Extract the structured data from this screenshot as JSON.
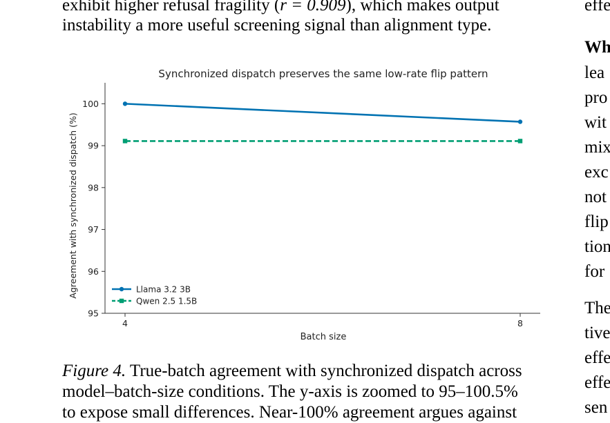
{
  "body": {
    "line1_before": "exhibit higher refusal fragility (",
    "line1_math": "r = 0.909",
    "line1_after": "), which makes output",
    "line2": "instability a more useful screening signal than alignment type."
  },
  "right_column": {
    "lines": [
      "effe",
      "Wh",
      "lea",
      "pro",
      "wit",
      "mix",
      "exc",
      "not",
      "flip",
      "tion",
      "for",
      "The",
      "tive",
      "effe",
      "effe",
      "sen"
    ]
  },
  "caption": {
    "label": "Figure 4.",
    "line1": " True-batch agreement with synchronized dispatch across",
    "line2": "model–batch-size conditions. The y-axis is zoomed to 95–100.5%",
    "line3": "to expose small differences. Near-100% agreement argues against"
  },
  "chart_data": {
    "type": "line",
    "title": "Synchronized dispatch preserves the same low-rate flip pattern",
    "xlabel": "Batch size",
    "ylabel": "Agreement with synchronized dispatch (%)",
    "x": [
      4,
      8
    ],
    "xticks": [
      "4",
      "8"
    ],
    "yticks": [
      "95",
      "96",
      "97",
      "98",
      "99",
      "100"
    ],
    "ylim": [
      95,
      100.5
    ],
    "legend_position": "lower-left",
    "grid": false,
    "series": [
      {
        "name": "Llama 3.2 3B",
        "values": [
          100.0,
          99.57
        ],
        "color": "#0072B2",
        "style": "solid",
        "marker": "circle"
      },
      {
        "name": "Qwen 2.5 1.5B",
        "values": [
          99.11,
          99.11
        ],
        "color": "#009E73",
        "style": "dashed",
        "marker": "square"
      }
    ]
  }
}
